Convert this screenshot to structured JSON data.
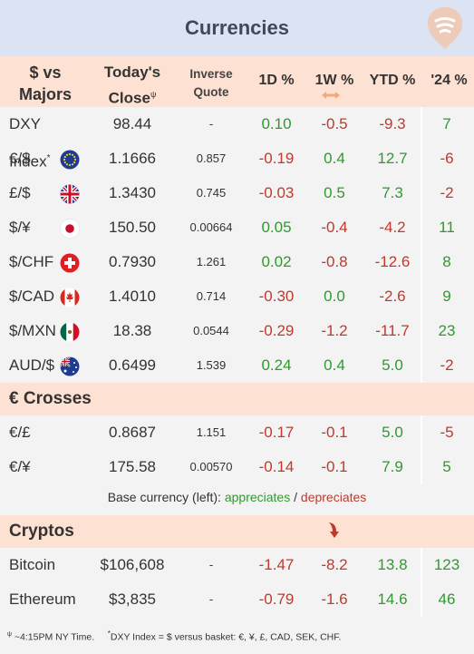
{
  "title": "Currencies",
  "columns": {
    "pair_line1": "$ vs",
    "pair_line2": "Majors",
    "close_line1": "Today's",
    "close_line2": "Close",
    "close_mark": "ψ",
    "inverse_line1": "Inverse",
    "inverse_line2": "Quote",
    "d1": "1D %",
    "w1": "1W %",
    "ytd": "YTD %",
    "y24": "'24 %"
  },
  "majors": [
    {
      "label": "DXY Index",
      "label_mark": "*",
      "close": "98.44",
      "inverse": "-",
      "d1": "0.10",
      "w1": "-0.5",
      "ytd": "-9.3",
      "y24": "7"
    },
    {
      "label": "€/$",
      "flag": "eu-flag-icon",
      "close": "1.1666",
      "inverse": "0.857",
      "d1": "-0.19",
      "w1": "0.4",
      "ytd": "12.7",
      "y24": "-6"
    },
    {
      "label": "£/$",
      "flag": "uk-flag-icon",
      "close": "1.3430",
      "inverse": "0.745",
      "d1": "-0.03",
      "w1": "0.5",
      "ytd": "7.3",
      "y24": "-2"
    },
    {
      "label": "$/¥",
      "flag": "japan-flag-icon",
      "close": "150.50",
      "inverse": "0.00664",
      "d1": "0.05",
      "w1": "-0.4",
      "ytd": "-4.2",
      "y24": "11"
    },
    {
      "label": "$/CHF",
      "flag": "swiss-flag-icon",
      "close": "0.7930",
      "inverse": "1.261",
      "d1": "0.02",
      "w1": "-0.8",
      "ytd": "-12.6",
      "y24": "8"
    },
    {
      "label": "$/CAD",
      "flag": "canada-flag-icon",
      "close": "1.4010",
      "inverse": "0.714",
      "d1": "-0.30",
      "w1": "0.0",
      "ytd": "-2.6",
      "y24": "9"
    },
    {
      "label": "$/MXN",
      "flag": "mexico-flag-icon",
      "close": "18.38",
      "inverse": "0.0544",
      "d1": "-0.29",
      "w1": "-1.2",
      "ytd": "-11.7",
      "y24": "23"
    },
    {
      "label": "AUD/$",
      "flag": "australia-flag-icon",
      "close": "0.6499",
      "inverse": "1.539",
      "d1": "0.24",
      "w1": "0.4",
      "ytd": "5.0",
      "y24": "-2"
    }
  ],
  "crosses_title": "€ Crosses",
  "crosses": [
    {
      "label": "€/£",
      "close": "0.8687",
      "inverse": "1.151",
      "d1": "-0.17",
      "w1": "-0.1",
      "ytd": "5.0",
      "y24": "-5"
    },
    {
      "label": "€/¥",
      "close": "175.58",
      "inverse": "0.00570",
      "d1": "-0.14",
      "w1": "-0.1",
      "ytd": "7.9",
      "y24": "5"
    }
  ],
  "legend": {
    "prefix": "Base currency (left): ",
    "appreciates": "appreciates",
    "sep": " / ",
    "depreciates": "depreciates"
  },
  "cryptos_title": "Cryptos",
  "cryptos": [
    {
      "label": "Bitcoin",
      "close": "$106,608",
      "inverse": "-",
      "d1": "-1.47",
      "w1": "-8.2",
      "ytd": "13.8",
      "y24": "123"
    },
    {
      "label": "Ethereum",
      "close": "$3,835",
      "inverse": "-",
      "d1": "-0.79",
      "w1": "-1.6",
      "ytd": "14.6",
      "y24": "46"
    }
  ],
  "footnote": {
    "time_mark": "ψ",
    "time": " ~4:15PM NY Time.",
    "dxy_mark": "*",
    "dxy": "DXY Index = $ versus basket: €, ¥, £, CAD, SEK, CHF."
  },
  "colors": {
    "positive": "#2e9a2e",
    "negative": "#c0392b",
    "header_bg": "#dce3f3",
    "section_bg": "#fde1d3",
    "body_bg": "#f3f3f3"
  }
}
